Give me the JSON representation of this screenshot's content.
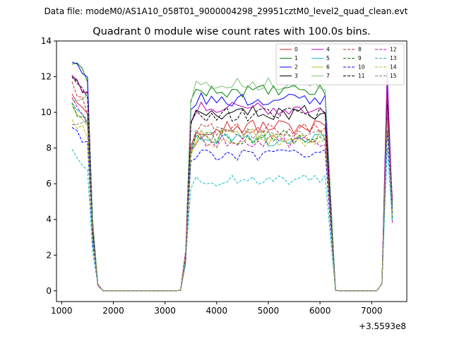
{
  "chart_data": {
    "type": "line",
    "suptitle": "Data file: modeM0/AS1A10_058T01_9000004298_29951cztM0_level2_quad_clean.evt",
    "title": "Quadrant 0 module wise count rates with 100.0s bins.",
    "xlabel": "",
    "ylabel": "",
    "x_offset_label": "+3.5593e8",
    "xlim": [
      900,
      7680
    ],
    "ylim": [
      -0.6,
      14.0
    ],
    "x_ticks": [
      1000,
      2000,
      3000,
      4000,
      5000,
      6000,
      7000
    ],
    "y_ticks": [
      0,
      2,
      4,
      6,
      8,
      10,
      12,
      14
    ],
    "legend": {
      "placement": "top-right",
      "columns": 4
    },
    "grid": false,
    "series": [
      {
        "name": "0",
        "color": "#d62728",
        "dash": "solid",
        "level": 9.2,
        "start": 11.2,
        "peak": 11.0,
        "amp": 0.45
      },
      {
        "name": "1",
        "color": "#008000",
        "dash": "solid",
        "level": 11.2,
        "start": 12.8,
        "peak": 11.5,
        "amp": 0.35
      },
      {
        "name": "2",
        "color": "#0000ff",
        "dash": "solid",
        "level": 10.7,
        "start": 12.9,
        "peak": 12.3,
        "amp": 0.4
      },
      {
        "name": "3",
        "color": "#000000",
        "dash": "solid",
        "level": 10.0,
        "start": 12.0,
        "peak": 10.6,
        "amp": 0.4
      },
      {
        "name": "4",
        "color": "#bf00bf",
        "dash": "solid",
        "level": 10.2,
        "start": 12.1,
        "peak": 12.0,
        "amp": 0.4
      },
      {
        "name": "5",
        "color": "#17becf",
        "dash": "solid",
        "level": 8.5,
        "start": 10.5,
        "peak": 10.0,
        "amp": 0.45
      },
      {
        "name": "6",
        "color": "#bcbd22",
        "dash": "solid",
        "level": 8.6,
        "start": 10.3,
        "peak": 10.0,
        "amp": 0.45
      },
      {
        "name": "7",
        "color": "#7fbf7f",
        "dash": "solid",
        "level": 11.6,
        "start": 10.6,
        "peak": 10.3,
        "amp": 0.35
      },
      {
        "name": "8",
        "color": "#d62728",
        "dash": "dashed",
        "level": 9.0,
        "start": 11.6,
        "peak": 11.0,
        "amp": 0.4
      },
      {
        "name": "9",
        "color": "#008000",
        "dash": "dashed",
        "level": 8.6,
        "start": 10.4,
        "peak": 10.0,
        "amp": 0.4
      },
      {
        "name": "10",
        "color": "#0000ff",
        "dash": "dashed",
        "level": 7.6,
        "start": 9.0,
        "peak": 9.0,
        "amp": 0.35
      },
      {
        "name": "11",
        "color": "#000000",
        "dash": "dashed",
        "level": 9.9,
        "start": 11.8,
        "peak": 10.4,
        "amp": 0.4
      },
      {
        "name": "12",
        "color": "#bf00bf",
        "dash": "dashed",
        "level": 8.4,
        "start": 10.6,
        "peak": 10.3,
        "amp": 0.4
      },
      {
        "name": "13",
        "color": "#17becf",
        "dash": "dashed",
        "level": 6.2,
        "start": 7.7,
        "peak": 8.0,
        "amp": 0.35
      },
      {
        "name": "14",
        "color": "#bcbd22",
        "dash": "dashed",
        "level": 8.4,
        "start": 9.3,
        "peak": 9.6,
        "amp": 0.4
      },
      {
        "name": "15",
        "color": "#7f7f7f",
        "dash": "dashed",
        "level": 8.8,
        "start": 9.6,
        "peak": 10.0,
        "amp": 0.4
      }
    ]
  }
}
